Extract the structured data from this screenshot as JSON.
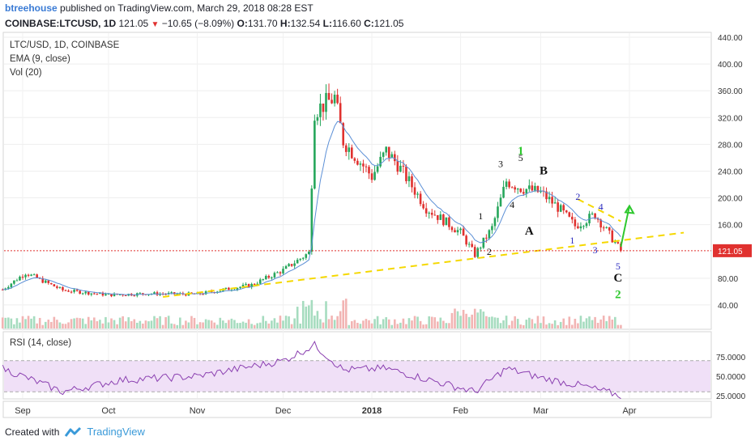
{
  "header": {
    "author": "btreehouse",
    "published_text": "published on TradingView.com, March 29, 2018 08:28 EST",
    "symbol": "COINBASE:LTCUSD, 1D",
    "last": "121.05",
    "change_arrow": "▼",
    "change": "−10.65 (−8.09%)",
    "open_label": "O:",
    "open": "131.70",
    "high_label": "H:",
    "high": "132.54",
    "low_label": "L:",
    "low": "116.60",
    "close_label": "C:",
    "close": "121.05"
  },
  "legend": {
    "symbol": "LTC/USD, 1D, COINBASE",
    "ema": "EMA (9, close)",
    "vol": "Vol (20)",
    "rsi": "RSI (14, close)"
  },
  "footer": {
    "created_with": "Created with",
    "brand": "TradingView"
  },
  "colors": {
    "up": "#26a65b",
    "down": "#e0312f",
    "ema": "#5b8fd6",
    "vol_ma": "#e0955a",
    "rsi": "#8a3fb0",
    "rsi_band": "#f0e0f7",
    "trend": "#f5d800",
    "price_line": "#e0312f",
    "wave_green": "#2ec82e",
    "wave_blue": "#2b2bbf"
  },
  "chart_data": {
    "type": "candlestick",
    "y_ticks": [
      "440.00",
      "400.00",
      "360.00",
      "320.00",
      "280.00",
      "240.00",
      "200.00",
      "160.00",
      "80.00",
      "40.00"
    ],
    "rsi_ticks": [
      "75.0000",
      "50.0000",
      "25.0000"
    ],
    "x_ticks": [
      "Sep",
      "Oct",
      "Nov",
      "Dec",
      "2018",
      "Feb",
      "Mar",
      "Apr"
    ],
    "last_price_label": "121.05",
    "rsi_bands": [
      70,
      30
    ],
    "price_anchors": [
      {
        "date": "2017-08-25",
        "price": 63
      },
      {
        "date": "2017-09-02",
        "price": 88
      },
      {
        "date": "2017-09-15",
        "price": 62
      },
      {
        "date": "2017-10-01",
        "price": 55
      },
      {
        "date": "2017-10-15",
        "price": 57
      },
      {
        "date": "2017-11-01",
        "price": 56
      },
      {
        "date": "2017-11-20",
        "price": 70
      },
      {
        "date": "2017-12-01",
        "price": 92
      },
      {
        "date": "2017-12-10",
        "price": 118
      },
      {
        "date": "2017-12-12",
        "price": 330
      },
      {
        "date": "2017-12-19",
        "price": 350
      },
      {
        "date": "2017-12-22",
        "price": 285
      },
      {
        "date": "2018-01-01",
        "price": 232
      },
      {
        "date": "2018-01-06",
        "price": 270
      },
      {
        "date": "2018-01-10",
        "price": 250
      },
      {
        "date": "2018-01-20",
        "price": 185
      },
      {
        "date": "2018-02-01",
        "price": 148
      },
      {
        "date": "2018-02-06",
        "price": 115
      },
      {
        "date": "2018-02-12",
        "price": 155
      },
      {
        "date": "2018-02-17",
        "price": 225
      },
      {
        "date": "2018-02-22",
        "price": 215
      },
      {
        "date": "2018-03-01",
        "price": 208
      },
      {
        "date": "2018-03-07",
        "price": 186
      },
      {
        "date": "2018-03-13",
        "price": 158
      },
      {
        "date": "2018-03-20",
        "price": 175
      },
      {
        "date": "2018-03-29",
        "price": 121.05
      }
    ],
    "rsi_anchors": [
      {
        "date": "2017-08-25",
        "value": 60
      },
      {
        "date": "2017-09-15",
        "value": 30
      },
      {
        "date": "2017-10-05",
        "value": 45
      },
      {
        "date": "2017-11-01",
        "value": 50
      },
      {
        "date": "2017-12-01",
        "value": 70
      },
      {
        "date": "2017-12-12",
        "value": 90
      },
      {
        "date": "2017-12-22",
        "value": 58
      },
      {
        "date": "2018-01-06",
        "value": 60
      },
      {
        "date": "2018-02-06",
        "value": 30
      },
      {
        "date": "2018-02-17",
        "value": 60
      },
      {
        "date": "2018-03-01",
        "value": 48
      },
      {
        "date": "2018-03-15",
        "value": 38
      },
      {
        "date": "2018-03-29",
        "value": 25
      }
    ],
    "annotations": [
      {
        "text": "1",
        "date": "2018-02-08",
        "price": 168,
        "color": "black",
        "size": "sm"
      },
      {
        "text": "2",
        "date": "2018-02-11",
        "price": 115,
        "color": "black",
        "size": "sm"
      },
      {
        "text": "3",
        "date": "2018-02-15",
        "price": 246,
        "color": "black",
        "size": "sm"
      },
      {
        "text": "4",
        "date": "2018-02-19",
        "price": 185,
        "color": "black",
        "size": "sm"
      },
      {
        "text": "5",
        "date": "2018-02-22",
        "price": 255,
        "color": "black",
        "size": "sm"
      },
      {
        "text": "1",
        "date": "2018-02-22",
        "price": 265,
        "color": "green",
        "size": "md"
      },
      {
        "text": "A",
        "date": "2018-02-25",
        "price": 145,
        "color": "black",
        "size": "md"
      },
      {
        "text": "B",
        "date": "2018-03-02",
        "price": 235,
        "color": "black",
        "size": "md"
      },
      {
        "text": "1",
        "date": "2018-03-12",
        "price": 132,
        "color": "blue",
        "size": "sm"
      },
      {
        "text": "2",
        "date": "2018-03-14",
        "price": 197,
        "color": "blue",
        "size": "sm"
      },
      {
        "text": "3",
        "date": "2018-03-20",
        "price": 117,
        "color": "blue",
        "size": "sm"
      },
      {
        "text": "4",
        "date": "2018-03-22",
        "price": 182,
        "color": "blue",
        "size": "sm"
      },
      {
        "text": "5",
        "date": "2018-03-28",
        "price": 93,
        "color": "blue",
        "size": "sm"
      },
      {
        "text": "C",
        "date": "2018-03-28",
        "price": 75,
        "color": "black",
        "size": "md"
      },
      {
        "text": "2",
        "date": "2018-03-28",
        "price": 50,
        "color": "green",
        "size": "md"
      }
    ],
    "trendlines": [
      {
        "from": {
          "date": "2017-10-20",
          "price": 52
        },
        "to": {
          "date": "2018-04-20",
          "price": 148
        }
      },
      {
        "from": {
          "date": "2018-03-14",
          "price": 198
        },
        "to": {
          "date": "2018-03-29",
          "price": 165
        }
      }
    ],
    "arrow": {
      "from": {
        "date": "2018-03-29",
        "price": 127
      },
      "to": {
        "date": "2018-04-01",
        "price": 188
      }
    }
  }
}
